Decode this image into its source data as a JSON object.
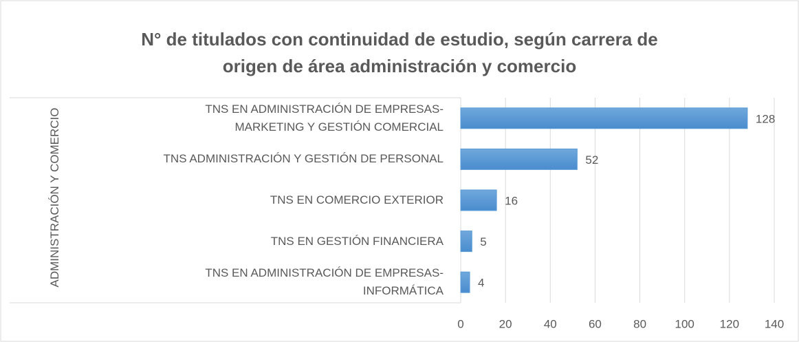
{
  "chart_data": {
    "type": "bar",
    "orientation": "horizontal",
    "title": "N° de titulados con continuidad de estudio, según carrera de origen de área administración y comercio",
    "group": "ADMINISTRACIÓN Y COMERCIO",
    "categories": [
      "TNS EN ADMINISTRACIÓN DE EMPRESAS-MARKETING Y GESTIÓN COMERCIAL",
      "TNS ADMINISTRACIÓN Y GESTIÓN DE PERSONAL",
      "TNS EN COMERCIO EXTERIOR",
      "TNS EN GESTIÓN FINANCIERA",
      "TNS EN ADMINISTRACIÓN DE EMPRESAS-INFORMÁTICA"
    ],
    "values": [
      128,
      52,
      16,
      5,
      4
    ],
    "color": "#5b9bd5",
    "xlim": [
      0,
      140
    ],
    "xticks": [
      0,
      20,
      40,
      60,
      80,
      100,
      120,
      140
    ],
    "grid": true
  }
}
